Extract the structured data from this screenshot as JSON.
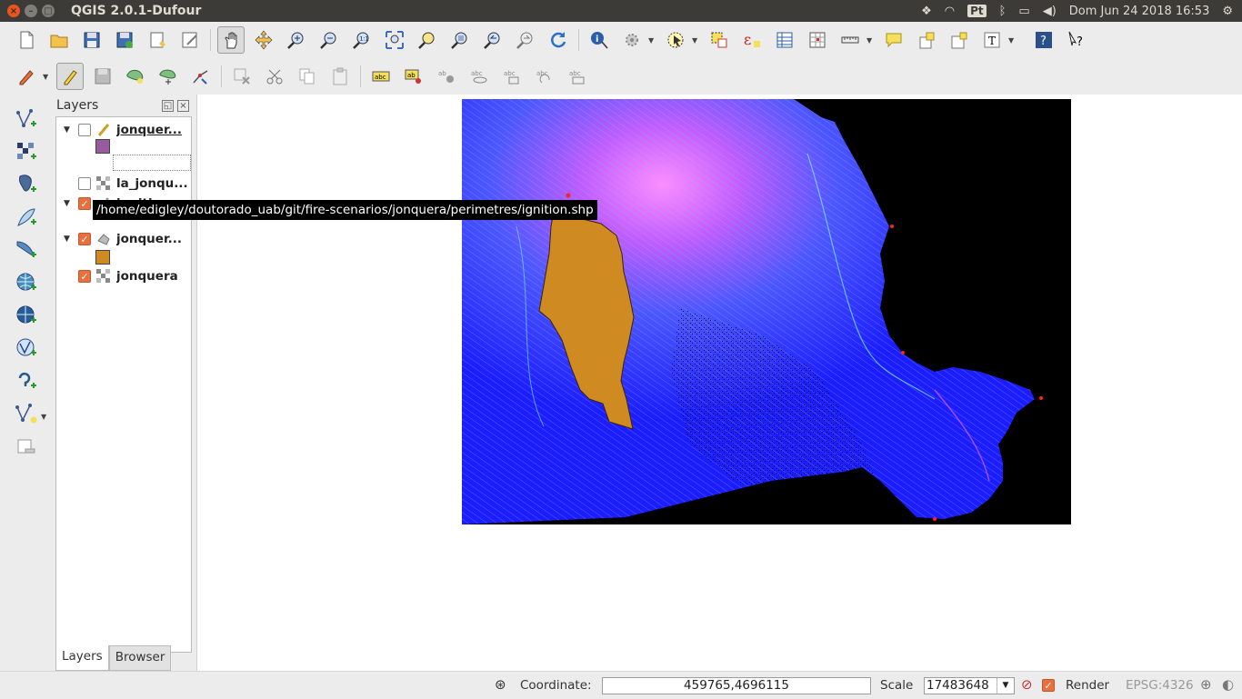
{
  "window": {
    "title": "QGIS 2.0.1-Dufour",
    "tray": {
      "language": "Pt",
      "datetime": "Dom Jun 24 2018 16:53"
    }
  },
  "toolbar1": {
    "icons": [
      "new-project-icon",
      "open-project-icon",
      "save-project-icon",
      "save-as-icon",
      "new-print-composer-icon",
      "composer-manager-icon",
      "pan-icon",
      "pan-to-selection-icon",
      "zoom-in-icon",
      "zoom-out-icon",
      "zoom-actual-icon",
      "zoom-full-icon",
      "zoom-selection-icon",
      "zoom-layer-icon",
      "zoom-last-icon",
      "zoom-next-icon",
      "refresh-icon",
      "identify-icon",
      "run-action-icon",
      "select-features-icon",
      "deselect-icon",
      "field-calculator-icon",
      "attribute-table-icon",
      "statistics-icon",
      "measure-icon",
      "annotation-icon",
      "new-bookmark-icon",
      "show-bookmarks-icon",
      "text-annotation-icon",
      "help-icon",
      "whats-this-icon"
    ]
  },
  "toolbar2": {
    "icons": [
      "current-edits-icon",
      "toggle-editing-icon",
      "save-edits-icon",
      "add-feature-icon",
      "move-feature-icon",
      "node-tool-icon",
      "delete-selected-icon",
      "cut-features-icon",
      "copy-features-icon",
      "paste-features-icon",
      "label-tool-icon",
      "layer-labeling-icon",
      "pin-labels-icon",
      "show-hide-labels-icon",
      "move-label-icon",
      "rotate-label-icon",
      "change-label-icon"
    ]
  },
  "left_toolbar": {
    "icons": [
      "add-vector-layer-icon",
      "add-raster-layer-icon",
      "add-postgis-layer-icon",
      "new-spatialite-layer-icon",
      "add-mssql-layer-icon",
      "add-wms-layer-icon",
      "add-wcs-layer-icon",
      "add-wfs-layer-icon",
      "add-delimited-text-icon",
      "new-shapefile-icon",
      "remove-layer-icon"
    ]
  },
  "layers_panel": {
    "title": "Layers",
    "layers": [
      {
        "name": "jonquer...",
        "checked": false,
        "expanded": true,
        "type": "line",
        "swatch": "#9a5aa0"
      },
      {
        "name": "la_jonqu...",
        "checked": false,
        "expanded": false,
        "type": "raster"
      },
      {
        "name": "ignition",
        "checked": true,
        "expanded": true,
        "type": "point"
      },
      {
        "name": "jonquer...",
        "checked": true,
        "expanded": true,
        "type": "polygon",
        "swatch": "#d08a22"
      },
      {
        "name": "jonquera",
        "checked": true,
        "expanded": false,
        "type": "raster"
      }
    ],
    "tabs": [
      "Layers",
      "Browser"
    ]
  },
  "tooltip": "/home/edigley/doutorado_uab/git/fire-scenarios/jonquera/perimetres/ignition.shp",
  "status_bar": {
    "coordinate_label": "Coordinate:",
    "coordinate_value": "459765,4696115",
    "scale_label": "Scale",
    "scale_value": "17483648",
    "render_label": "Render",
    "render_checked": true,
    "crs": "EPSG:4326"
  }
}
